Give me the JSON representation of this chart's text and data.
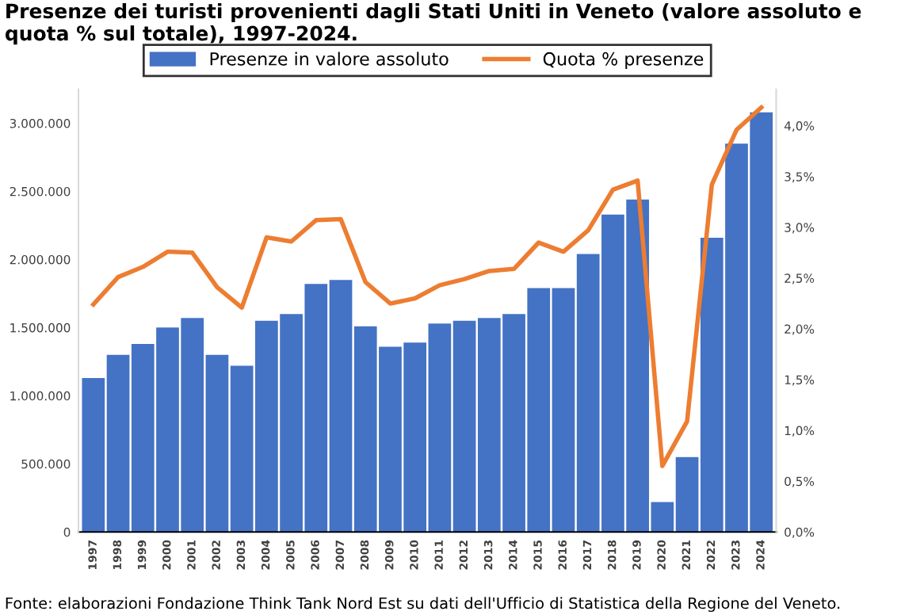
{
  "chart_data": {
    "type": "bar",
    "title": "Presenze dei turisti provenienti dagli Stati Uniti in Veneto (valore assoluto e quota % sul totale), 1997-2024.",
    "categories": [
      "1997",
      "1998",
      "1999",
      "2000",
      "2001",
      "2002",
      "2003",
      "2004",
      "2005",
      "2006",
      "2007",
      "2008",
      "2009",
      "2010",
      "2011",
      "2012",
      "2013",
      "2014",
      "2015",
      "2016",
      "2017",
      "2018",
      "2019",
      "2020",
      "2021",
      "2022",
      "2023",
      "2024"
    ],
    "series": [
      {
        "name": "Presenze in valore assoluto",
        "color": "#4472c4",
        "values": [
          1130000,
          1300000,
          1380000,
          1500000,
          1570000,
          1300000,
          1220000,
          1550000,
          1600000,
          1820000,
          1850000,
          1510000,
          1360000,
          1390000,
          1530000,
          1550000,
          1570000,
          1600000,
          1790000,
          1790000,
          2040000,
          2330000,
          2440000,
          220000,
          550000,
          2160000,
          2850000,
          3080000
        ]
      },
      {
        "name": "Quota % presenze",
        "type": "line",
        "axis": "y2",
        "color": "#ed7d31",
        "values": [
          2.24,
          2.51,
          2.61,
          2.76,
          2.75,
          2.41,
          2.21,
          2.9,
          2.86,
          3.07,
          3.08,
          2.46,
          2.25,
          2.3,
          2.43,
          2.49,
          2.57,
          2.59,
          2.85,
          2.76,
          2.97,
          3.37,
          3.46,
          0.65,
          1.09,
          3.42,
          3.96,
          4.18
        ]
      }
    ],
    "ylim": [
      0,
      3250000
    ],
    "yticks": [
      {
        "value": 0,
        "label": "0"
      },
      {
        "value": 500000,
        "label": "500.000"
      },
      {
        "value": 1000000,
        "label": "1.000.000"
      },
      {
        "value": 1500000,
        "label": "1.500.000"
      },
      {
        "value": 2000000,
        "label": "2.000.000"
      },
      {
        "value": 2500000,
        "label": "2.500.000"
      },
      {
        "value": 3000000,
        "label": "3.000.000"
      }
    ],
    "y2lim": [
      0,
      4.36
    ],
    "y2ticks": [
      {
        "value": 0,
        "label": "0,0%"
      },
      {
        "value": 0.5,
        "label": "0,5%"
      },
      {
        "value": 1,
        "label": "1,0%"
      },
      {
        "value": 1.5,
        "label": "1,5%"
      },
      {
        "value": 2,
        "label": "2,0%"
      },
      {
        "value": 2.5,
        "label": "2,5%"
      },
      {
        "value": 3,
        "label": "3,0%"
      },
      {
        "value": 3.5,
        "label": "3,5%"
      },
      {
        "value": 4,
        "label": "4,0%"
      }
    ],
    "legend": "top",
    "grid": false,
    "line_style": "solid",
    "annotations": [
      "Fonte: elaborazioni Fondazione Think Tank Nord Est su dati dell'Ufficio di Statistica della Regione del Veneto."
    ]
  }
}
